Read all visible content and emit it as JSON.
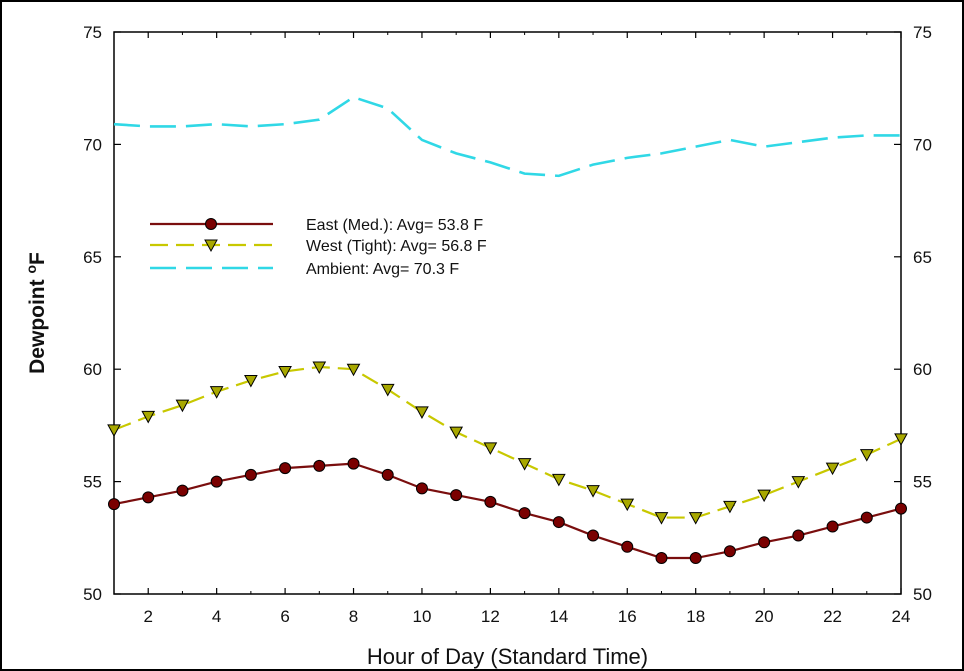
{
  "chart_data": {
    "type": "line",
    "title": "",
    "xlabel": "Hour of Day (Standard Time)",
    "ylabel_main": "Dewpoint ",
    "ylabel_sup": "o",
    "ylabel_unit": "F",
    "xlim": [
      1,
      24
    ],
    "ylim": [
      50,
      75
    ],
    "x_ticks": [
      2,
      4,
      6,
      8,
      10,
      12,
      14,
      16,
      18,
      20,
      22,
      24
    ],
    "y_ticks": [
      50,
      55,
      60,
      65,
      70,
      75
    ],
    "grid": false,
    "legend_position": "upper-left",
    "x": [
      1,
      2,
      3,
      4,
      5,
      6,
      7,
      8,
      9,
      10,
      11,
      12,
      13,
      14,
      15,
      16,
      17,
      18,
      19,
      20,
      21,
      22,
      23,
      24
    ],
    "series": [
      {
        "name": "East (Med.): Avg= 53.8 F",
        "color": "#7a0e0e",
        "marker": "circle",
        "marker_color": "#7a0000",
        "line_style": "solid",
        "values": [
          54.0,
          54.3,
          54.6,
          55.0,
          55.3,
          55.6,
          55.7,
          55.8,
          55.3,
          54.7,
          54.4,
          54.1,
          53.6,
          53.2,
          52.6,
          52.1,
          51.6,
          51.6,
          51.9,
          52.3,
          52.6,
          53.0,
          53.4,
          53.8
        ]
      },
      {
        "name": "West (Tight):  Avg= 56.8 F",
        "color": "#c8c800",
        "marker": "triangle-down",
        "marker_color": "#a8a800",
        "line_style": "dashed",
        "values": [
          57.3,
          57.9,
          58.4,
          59.0,
          59.5,
          59.9,
          60.1,
          60.0,
          59.1,
          58.1,
          57.2,
          56.5,
          55.8,
          55.1,
          54.6,
          54.0,
          53.4,
          53.4,
          53.9,
          54.4,
          55.0,
          55.6,
          56.2,
          56.9
        ]
      },
      {
        "name": "Ambient: Avg= 70.3 F",
        "color": "#30d8e6",
        "marker": "none",
        "line_style": "dashed",
        "values": [
          70.9,
          70.8,
          70.8,
          70.9,
          70.8,
          70.9,
          71.1,
          72.1,
          71.6,
          70.2,
          69.6,
          69.2,
          68.7,
          68.6,
          69.1,
          69.4,
          69.6,
          69.9,
          70.2,
          69.9,
          70.1,
          70.3,
          70.4,
          70.4
        ]
      }
    ]
  }
}
